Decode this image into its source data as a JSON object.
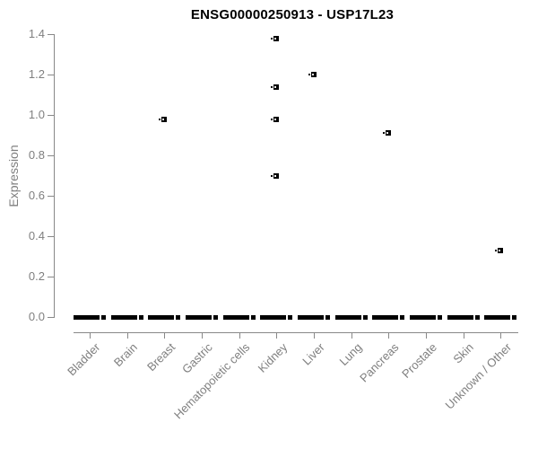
{
  "chart_data": {
    "type": "scatter",
    "subtype": "boxplot-with-outliers",
    "title": "ENSG00000250913 - USP17L23",
    "xlabel": "",
    "ylabel": "Expression",
    "ylim": [
      0,
      1.4
    ],
    "yticks": [
      0,
      0.2,
      0.4,
      0.6,
      0.8,
      1.0,
      1.2,
      1.4
    ],
    "grid": false,
    "legend": false,
    "categories": [
      "Bladder",
      "Brain",
      "Breast",
      "Gastric",
      "Hematopoietic cells",
      "Kidney",
      "Liver",
      "Lung",
      "Pancreas",
      "Prostate",
      "Skin",
      "Unknown / Other"
    ],
    "zero_boxes": {
      "description": "collapsed black boxplot dash at y=0 for every category",
      "value": 0.0
    },
    "outlier_points": [
      {
        "category": "Breast",
        "value": 0.98
      },
      {
        "category": "Kidney",
        "value": 1.38
      },
      {
        "category": "Kidney",
        "value": 1.14
      },
      {
        "category": "Kidney",
        "value": 0.98
      },
      {
        "category": "Kidney",
        "value": 0.7
      },
      {
        "category": "Liver",
        "value": 1.2
      },
      {
        "category": "Pancreas",
        "value": 0.91
      },
      {
        "category": "Unknown / Other",
        "value": 0.33
      }
    ],
    "colors": {
      "point": "#000000",
      "box": "#000000",
      "axis": "#888888",
      "tick_label": "#7f7f7f",
      "title": "#000000",
      "background": "#ffffff"
    }
  }
}
